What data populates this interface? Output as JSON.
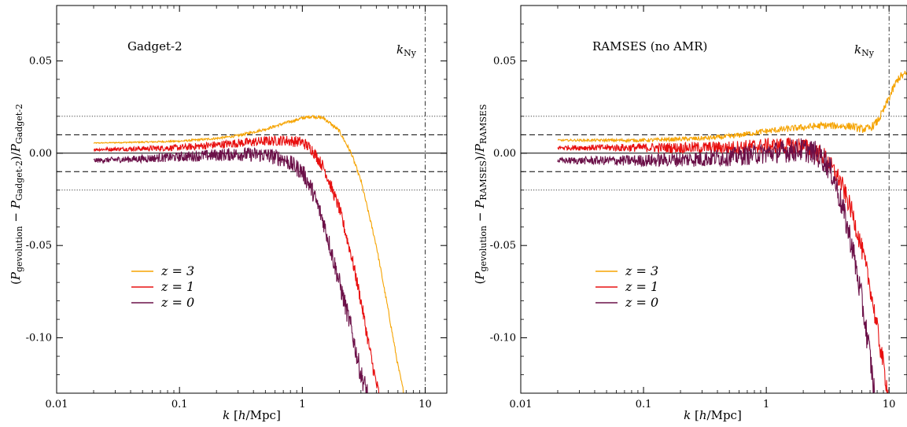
{
  "chart_data": [
    {
      "type": "line",
      "title": "Gadget-2",
      "xlabel": "k [h/Mpc]",
      "ylabel": "(P_gevolution − P_Gadget-2)/P_Gadget-2",
      "xscale": "log",
      "xlim": [
        0.01,
        15
      ],
      "ylim": [
        -0.13,
        0.08
      ],
      "xtick_labels": [
        "0.01",
        "0.1",
        "1",
        "10"
      ],
      "ytick_labels": [
        "0.05",
        "0.00",
        "-0.05",
        "-0.10"
      ],
      "xticks": [
        0.01,
        0.1,
        1,
        10
      ],
      "yticks": [
        0.05,
        0.0,
        -0.05,
        -0.1
      ],
      "kny_label": "k_Ny",
      "kny": 10,
      "reference_lines": [
        {
          "y": 0.0,
          "style": "solid"
        },
        {
          "y": 0.01,
          "style": "dashed"
        },
        {
          "y": -0.01,
          "style": "dashed"
        },
        {
          "y": 0.02,
          "style": "dotted"
        },
        {
          "y": -0.02,
          "style": "dotted"
        }
      ],
      "legend_position": "lower-left",
      "series": [
        {
          "name": "z = 3",
          "color": "#f5a300",
          "noise": 0.0006,
          "x": [
            0.02,
            0.05,
            0.1,
            0.2,
            0.3,
            0.5,
            0.7,
            1.0,
            1.2,
            1.5,
            2.0,
            2.5,
            3.0,
            4.0,
            5.0,
            6.0,
            6.7
          ],
          "y": [
            0.0055,
            0.006,
            0.0065,
            0.008,
            0.0095,
            0.013,
            0.016,
            0.019,
            0.02,
            0.019,
            0.012,
            0.0,
            -0.015,
            -0.05,
            -0.085,
            -0.115,
            -0.13
          ]
        },
        {
          "name": "z = 1",
          "color": "#e81010",
          "noise": 0.002,
          "x": [
            0.02,
            0.05,
            0.1,
            0.2,
            0.3,
            0.5,
            0.7,
            1.0,
            1.2,
            1.5,
            2.0,
            2.5,
            3.0,
            3.5,
            4.0,
            4.2
          ],
          "y": [
            0.002,
            0.0025,
            0.003,
            0.0045,
            0.0055,
            0.0065,
            0.007,
            0.006,
            0.002,
            -0.008,
            -0.03,
            -0.055,
            -0.08,
            -0.105,
            -0.125,
            -0.13
          ]
        },
        {
          "name": "z = 0",
          "color": "#6b1048",
          "noise": 0.003,
          "x": [
            0.02,
            0.05,
            0.1,
            0.2,
            0.3,
            0.5,
            0.7,
            1.0,
            1.2,
            1.5,
            2.0,
            2.5,
            3.0,
            3.4
          ],
          "y": [
            -0.004,
            -0.003,
            -0.002,
            -0.001,
            -0.0005,
            -0.001,
            -0.003,
            -0.01,
            -0.02,
            -0.038,
            -0.07,
            -0.095,
            -0.12,
            -0.13
          ]
        }
      ]
    },
    {
      "type": "line",
      "title": "RAMSES (no AMR)",
      "xlabel": "k [h/Mpc]",
      "ylabel": "(P_gevolution − P_RAMSES)/P_RAMSES",
      "xscale": "log",
      "xlim": [
        0.01,
        14
      ],
      "ylim": [
        -0.13,
        0.08
      ],
      "xtick_labels": [
        "0.01",
        "0.1",
        "1",
        "10"
      ],
      "ytick_labels": [
        "0.05",
        "0.00",
        "-0.05",
        "-0.10"
      ],
      "xticks": [
        0.01,
        0.1,
        1,
        10
      ],
      "yticks": [
        0.05,
        0.0,
        -0.05,
        -0.1
      ],
      "kny_label": "k_Ny",
      "kny": 10,
      "reference_lines": [
        {
          "y": 0.0,
          "style": "solid"
        },
        {
          "y": 0.01,
          "style": "dashed"
        },
        {
          "y": -0.01,
          "style": "dashed"
        },
        {
          "y": 0.02,
          "style": "dotted"
        },
        {
          "y": -0.02,
          "style": "dotted"
        }
      ],
      "legend_position": "lower-left",
      "series": [
        {
          "name": "z = 3",
          "color": "#f5a300",
          "noise": 0.0012,
          "x": [
            0.02,
            0.05,
            0.1,
            0.3,
            0.5,
            1.0,
            2.0,
            3.0,
            5.0,
            6.0,
            7.0,
            8.0,
            9.0,
            10.0,
            11.0,
            12.0,
            14.0
          ],
          "y": [
            0.007,
            0.007,
            0.007,
            0.008,
            0.009,
            0.012,
            0.014,
            0.015,
            0.0145,
            0.013,
            0.0135,
            0.017,
            0.023,
            0.03,
            0.036,
            0.041,
            0.043
          ]
        },
        {
          "name": "z = 1",
          "color": "#e81010",
          "noise": 0.003,
          "x": [
            0.02,
            0.05,
            0.1,
            0.3,
            0.5,
            1.0,
            2.0,
            3.0,
            4.0,
            5.0,
            6.0,
            7.0,
            8.0,
            9.0,
            9.8
          ],
          "y": [
            0.003,
            0.003,
            0.003,
            0.003,
            0.003,
            0.004,
            0.004,
            -0.002,
            -0.015,
            -0.032,
            -0.052,
            -0.072,
            -0.095,
            -0.115,
            -0.13
          ]
        },
        {
          "name": "z = 0",
          "color": "#6b1048",
          "noise": 0.004,
          "x": [
            0.02,
            0.05,
            0.1,
            0.3,
            0.5,
            1.0,
            2.0,
            2.5,
            3.0,
            3.5,
            4.0,
            5.0,
            6.0,
            7.0,
            7.6
          ],
          "y": [
            -0.004,
            -0.004,
            -0.004,
            -0.003,
            -0.002,
            0.0,
            0.002,
            0.0,
            -0.004,
            -0.012,
            -0.025,
            -0.05,
            -0.08,
            -0.11,
            -0.13
          ]
        }
      ]
    }
  ]
}
